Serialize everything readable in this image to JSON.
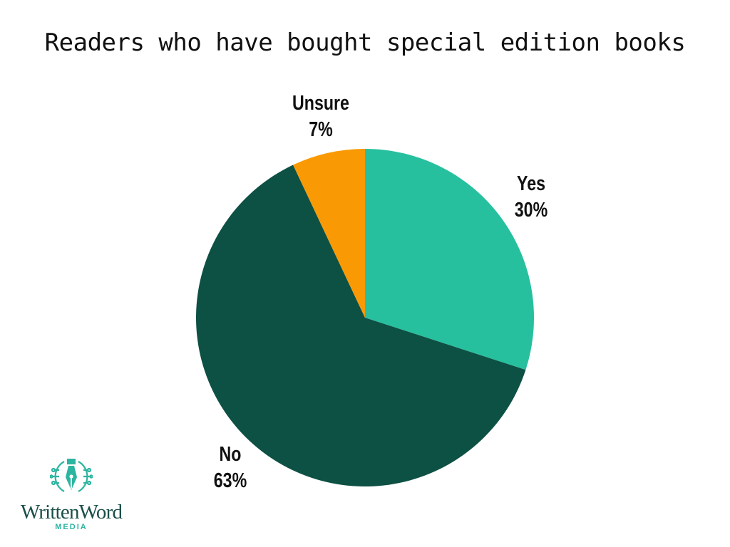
{
  "chart_data": {
    "type": "pie",
    "title": "Readers who have bought special edition books",
    "slices": [
      {
        "name": "Yes",
        "value": 30,
        "label": "30%",
        "color": "#27c09f"
      },
      {
        "name": "No",
        "value": 63,
        "label": "63%",
        "color": "#0d5044"
      },
      {
        "name": "Unsure",
        "value": 7,
        "label": "7%",
        "color": "#f99a04"
      }
    ],
    "start": "12 o'clock",
    "direction": "clockwise"
  },
  "logo": {
    "name": "WrittenWord",
    "sub": "MEDIA",
    "icon": "pen-nib-circuit-icon",
    "color": "#2cb5a0"
  }
}
